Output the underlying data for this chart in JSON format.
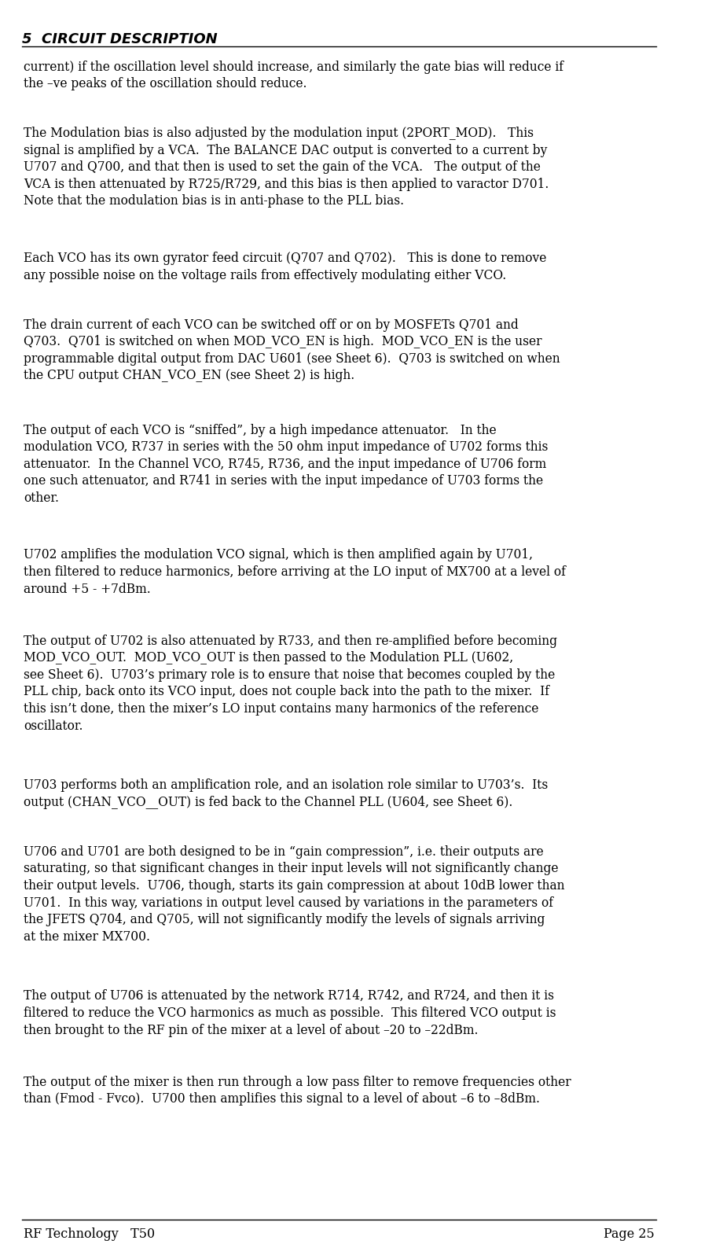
{
  "header_text": "5  CIRCUIT DESCRIPTION",
  "footer_left": "RF Technology   T50",
  "footer_right": "Page 25",
  "background_color": "#ffffff",
  "text_color": "#000000",
  "header_font_size": 13,
  "body_font_size": 11.2,
  "footer_font_size": 11.5,
  "paragraphs": [
    "current) if the oscillation level should increase, and similarly the gate bias will reduce if\nthe –ve peaks of the oscillation should reduce.",
    "The Modulation bias is also adjusted by the modulation input (2PORT_MOD).   This\nsignal is amplified by a VCA.  The BALANCE DAC output is converted to a current by\nU707 and Q700, and that then is used to set the gain of the VCA.   The output of the\nVCA is then attenuated by R725/R729, and this bias is then applied to varactor D701.\nNote that the modulation bias is in anti-phase to the PLL bias.",
    "Each VCO has its own gyrator feed circuit (Q707 and Q702).   This is done to remove\nany possible noise on the voltage rails from effectively modulating either VCO.",
    "The drain current of each VCO can be switched off or on by MOSFETs Q701 and\nQ703.  Q701 is switched on when MOD_VCO_EN is high.  MOD_VCO_EN is the user\nprogrammable digital output from DAC U601 (see Sheet 6).  Q703 is switched on when\nthe CPU output CHAN_VCO_EN (see Sheet 2) is high.",
    "The output of each VCO is “sniffed”, by a high impedance attenuator.   In the\nmodulation VCO, R737 in series with the 50 ohm input impedance of U702 forms this\nattenuator.  In the Channel VCO, R745, R736, and the input impedance of U706 form\none such attenuator, and R741 in series with the input impedance of U703 forms the\nother.",
    "U702 amplifies the modulation VCO signal, which is then amplified again by U701,\nthen filtered to reduce harmonics, before arriving at the LO input of MX700 at a level of\naround +5 - +7dBm.",
    "The output of U702 is also attenuated by R733, and then re-amplified before becoming\nMOD_VCO_OUT.  MOD_VCO_OUT is then passed to the Modulation PLL (U602,\nsee Sheet 6).  U703’s primary role is to ensure that noise that becomes coupled by the\nPLL chip, back onto its VCO input, does not couple back into the path to the mixer.  If\nthis isn’t done, then the mixer’s LO input contains many harmonics of the reference\noscillator.",
    "U703 performs both an amplification role, and an isolation role similar to U703’s.  Its\noutput (CHAN_VCO__OUT) is fed back to the Channel PLL (U604, see Sheet 6).",
    "U706 and U701 are both designed to be in “gain compression”, i.e. their outputs are\nsaturating, so that significant changes in their input levels will not significantly change\ntheir output levels.  U706, though, starts its gain compression at about 10dB lower than\nU701.  In this way, variations in output level caused by variations in the parameters of\nthe JFETS Q704, and Q705, will not significantly modify the levels of signals arriving\nat the mixer MX700.",
    "The output of U706 is attenuated by the network R714, R742, and R724, and then it is\nfiltered to reduce the VCO harmonics as much as possible.  This filtered VCO output is\nthen brought to the RF pin of the mixer at a level of about –20 to –22dBm.",
    "The output of the mixer is then run through a low pass filter to remove frequencies other\nthan (Fmod - Fvco).  U700 then amplifies this signal to a level of about –6 to –8dBm."
  ]
}
